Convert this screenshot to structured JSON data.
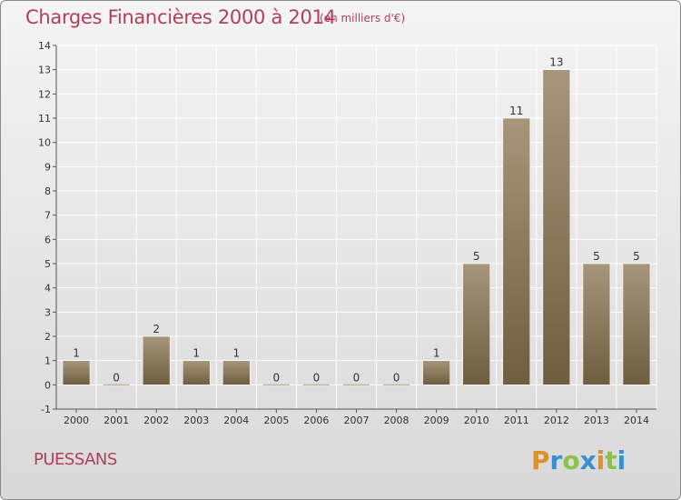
{
  "header": {
    "title": "Charges Financières 2000 à 2014",
    "unit_note": "(en milliers d'€)"
  },
  "footer": {
    "town": "PUESSANS",
    "logo_text": "Proxiti"
  },
  "colors": {
    "title": "#b0405a",
    "bar_top": "#a7977a",
    "bar_bottom": "#6e5d3f",
    "axis": "#555555",
    "grid": "#ffffff"
  },
  "chart_data": {
    "type": "bar",
    "title": "Charges Financières 2000 à 2014",
    "subtitle": "(en milliers d'€)",
    "categories": [
      "2000",
      "2001",
      "2002",
      "2003",
      "2004",
      "2005",
      "2006",
      "2007",
      "2008",
      "2009",
      "2010",
      "2011",
      "2012",
      "2013",
      "2014"
    ],
    "values": [
      1,
      0,
      2,
      1,
      1,
      0,
      0,
      0,
      0,
      1,
      5,
      11,
      13,
      5,
      5
    ],
    "ylim": [
      -1,
      14
    ],
    "yticks": [
      -1,
      0,
      1,
      2,
      3,
      4,
      5,
      6,
      7,
      8,
      9,
      10,
      11,
      12,
      13,
      14
    ],
    "grid": true,
    "legend": "none"
  }
}
